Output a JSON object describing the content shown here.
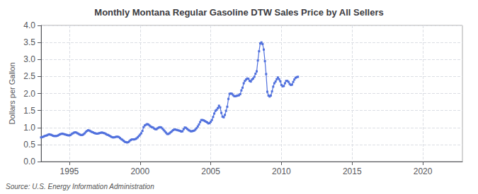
{
  "chart_data": {
    "type": "line",
    "title": "Monthly Montana Regular Gasoline DTW Sales Price by All Sellers",
    "ylabel": "Dollars per Gallon",
    "annotations": [
      "Source: U.S. Energy Information Administration"
    ],
    "marker": "square",
    "grid": true,
    "xlim": [
      1993.0,
      2022.8
    ],
    "xticks": [
      1995,
      2000,
      2005,
      2010,
      2015,
      2020
    ],
    "ylim": [
      0.0,
      4.0
    ],
    "yticks": [
      {
        "value": 0.0,
        "label": "0.0"
      },
      0.5,
      {
        "value": 1.0,
        "label": "1.0"
      },
      1.5,
      {
        "value": 2.0,
        "label": "2.0"
      },
      2.5,
      {
        "value": 3.0,
        "label": "3.0"
      },
      3.5,
      {
        "value": 4.0,
        "label": "4.0"
      }
    ],
    "x": [
      1993.0,
      1993.083,
      1993.167,
      1993.25,
      1993.333,
      1993.417,
      1993.5,
      1993.583,
      1993.667,
      1993.75,
      1993.833,
      1993.917,
      1994.0,
      1994.083,
      1994.167,
      1994.25,
      1994.333,
      1994.417,
      1994.5,
      1994.583,
      1994.667,
      1994.75,
      1994.833,
      1994.917,
      1995.0,
      1995.083,
      1995.167,
      1995.25,
      1995.333,
      1995.417,
      1995.5,
      1995.583,
      1995.667,
      1995.75,
      1995.833,
      1995.917,
      1996.0,
      1996.083,
      1996.167,
      1996.25,
      1996.333,
      1996.417,
      1996.5,
      1996.583,
      1996.667,
      1996.75,
      1996.833,
      1996.917,
      1997.0,
      1997.083,
      1997.167,
      1997.25,
      1997.333,
      1997.417,
      1997.5,
      1997.583,
      1997.667,
      1997.75,
      1997.833,
      1997.917,
      1998.0,
      1998.083,
      1998.167,
      1998.25,
      1998.333,
      1998.417,
      1998.5,
      1998.583,
      1998.667,
      1998.75,
      1998.833,
      1998.917,
      1999.0,
      1999.083,
      1999.167,
      1999.25,
      1999.333,
      1999.417,
      1999.5,
      1999.583,
      1999.667,
      1999.75,
      1999.833,
      1999.917,
      2000.0,
      2000.083,
      2000.167,
      2000.25,
      2000.333,
      2000.417,
      2000.5,
      2000.583,
      2000.667,
      2000.75,
      2000.833,
      2000.917,
      2001.0,
      2001.083,
      2001.167,
      2001.25,
      2001.333,
      2001.417,
      2001.5,
      2001.583,
      2001.667,
      2001.75,
      2001.833,
      2001.917,
      2002.0,
      2002.083,
      2002.167,
      2002.25,
      2002.333,
      2002.417,
      2002.5,
      2002.583,
      2002.667,
      2002.75,
      2002.833,
      2002.917,
      2003.0,
      2003.083,
      2003.167,
      2003.25,
      2003.333,
      2003.417,
      2003.5,
      2003.583,
      2003.667,
      2003.75,
      2003.833,
      2003.917,
      2004.0,
      2004.083,
      2004.167,
      2004.25,
      2004.333,
      2004.417,
      2004.5,
      2004.583,
      2004.667,
      2004.75,
      2004.833,
      2004.917,
      2005.0,
      2005.083,
      2005.167,
      2005.25,
      2005.333,
      2005.417,
      2005.5,
      2005.583,
      2005.667,
      2005.75,
      2005.833,
      2005.917,
      2006.0,
      2006.083,
      2006.167,
      2006.25,
      2006.333,
      2006.417,
      2006.5,
      2006.583,
      2006.667,
      2006.75,
      2006.833,
      2006.917,
      2007.0,
      2007.083,
      2007.167,
      2007.25,
      2007.333,
      2007.417,
      2007.5,
      2007.583,
      2007.667,
      2007.75,
      2007.833,
      2007.917,
      2008.0,
      2008.083,
      2008.167,
      2008.25,
      2008.333,
      2008.417,
      2008.5,
      2008.583,
      2008.667,
      2008.75,
      2008.833,
      2008.917,
      2009.0,
      2009.083,
      2009.167,
      2009.25,
      2009.333,
      2009.417,
      2009.5,
      2009.583,
      2009.667,
      2009.75,
      2009.833,
      2009.917,
      2010.0,
      2010.083,
      2010.167,
      2010.25,
      2010.333,
      2010.417,
      2010.5,
      2010.583,
      2010.667,
      2010.75,
      2010.833,
      2010.917,
      2011.0,
      2011.083,
      2011.167
    ],
    "values": [
      0.71,
      0.72,
      0.73,
      0.75,
      0.76,
      0.77,
      0.79,
      0.8,
      0.79,
      0.78,
      0.76,
      0.75,
      0.75,
      0.75,
      0.76,
      0.78,
      0.8,
      0.81,
      0.82,
      0.81,
      0.8,
      0.79,
      0.78,
      0.77,
      0.77,
      0.78,
      0.81,
      0.83,
      0.85,
      0.86,
      0.85,
      0.83,
      0.81,
      0.79,
      0.78,
      0.78,
      0.8,
      0.83,
      0.87,
      0.9,
      0.92,
      0.91,
      0.89,
      0.87,
      0.86,
      0.84,
      0.83,
      0.82,
      0.82,
      0.83,
      0.84,
      0.85,
      0.85,
      0.84,
      0.83,
      0.81,
      0.79,
      0.78,
      0.76,
      0.74,
      0.72,
      0.71,
      0.71,
      0.72,
      0.73,
      0.73,
      0.72,
      0.69,
      0.66,
      0.64,
      0.61,
      0.58,
      0.57,
      0.56,
      0.57,
      0.6,
      0.63,
      0.65,
      0.65,
      0.65,
      0.66,
      0.68,
      0.71,
      0.75,
      0.79,
      0.83,
      0.9,
      1.01,
      1.06,
      1.08,
      1.1,
      1.09,
      1.06,
      1.03,
      1.01,
      1.0,
      0.97,
      0.95,
      0.95,
      0.98,
      1.0,
      1.01,
      1.0,
      0.97,
      0.93,
      0.89,
      0.85,
      0.81,
      0.81,
      0.83,
      0.86,
      0.89,
      0.92,
      0.94,
      0.94,
      0.93,
      0.92,
      0.91,
      0.9,
      0.88,
      0.89,
      0.95,
      1.0,
      0.99,
      0.96,
      0.93,
      0.91,
      0.89,
      0.89,
      0.9,
      0.91,
      0.94,
      0.98,
      1.03,
      1.09,
      1.16,
      1.22,
      1.22,
      1.21,
      1.19,
      1.17,
      1.15,
      1.12,
      1.13,
      1.17,
      1.22,
      1.31,
      1.41,
      1.49,
      1.52,
      1.57,
      1.64,
      1.59,
      1.43,
      1.32,
      1.3,
      1.37,
      1.49,
      1.61,
      1.84,
      1.99,
      2.0,
      1.99,
      1.95,
      1.92,
      1.92,
      1.93,
      1.94,
      1.95,
      1.98,
      2.09,
      2.17,
      2.3,
      2.37,
      2.41,
      2.44,
      2.43,
      2.37,
      2.35,
      2.41,
      2.44,
      2.49,
      2.58,
      2.65,
      2.97,
      3.24,
      3.47,
      3.5,
      3.45,
      3.29,
      2.95,
      2.57,
      2.05,
      1.94,
      1.91,
      1.94,
      2.06,
      2.2,
      2.3,
      2.35,
      2.42,
      2.47,
      2.42,
      2.36,
      2.25,
      2.21,
      2.22,
      2.3,
      2.37,
      2.37,
      2.34,
      2.28,
      2.25,
      2.26,
      2.34,
      2.41,
      2.46,
      2.48,
      2.49
    ]
  }
}
